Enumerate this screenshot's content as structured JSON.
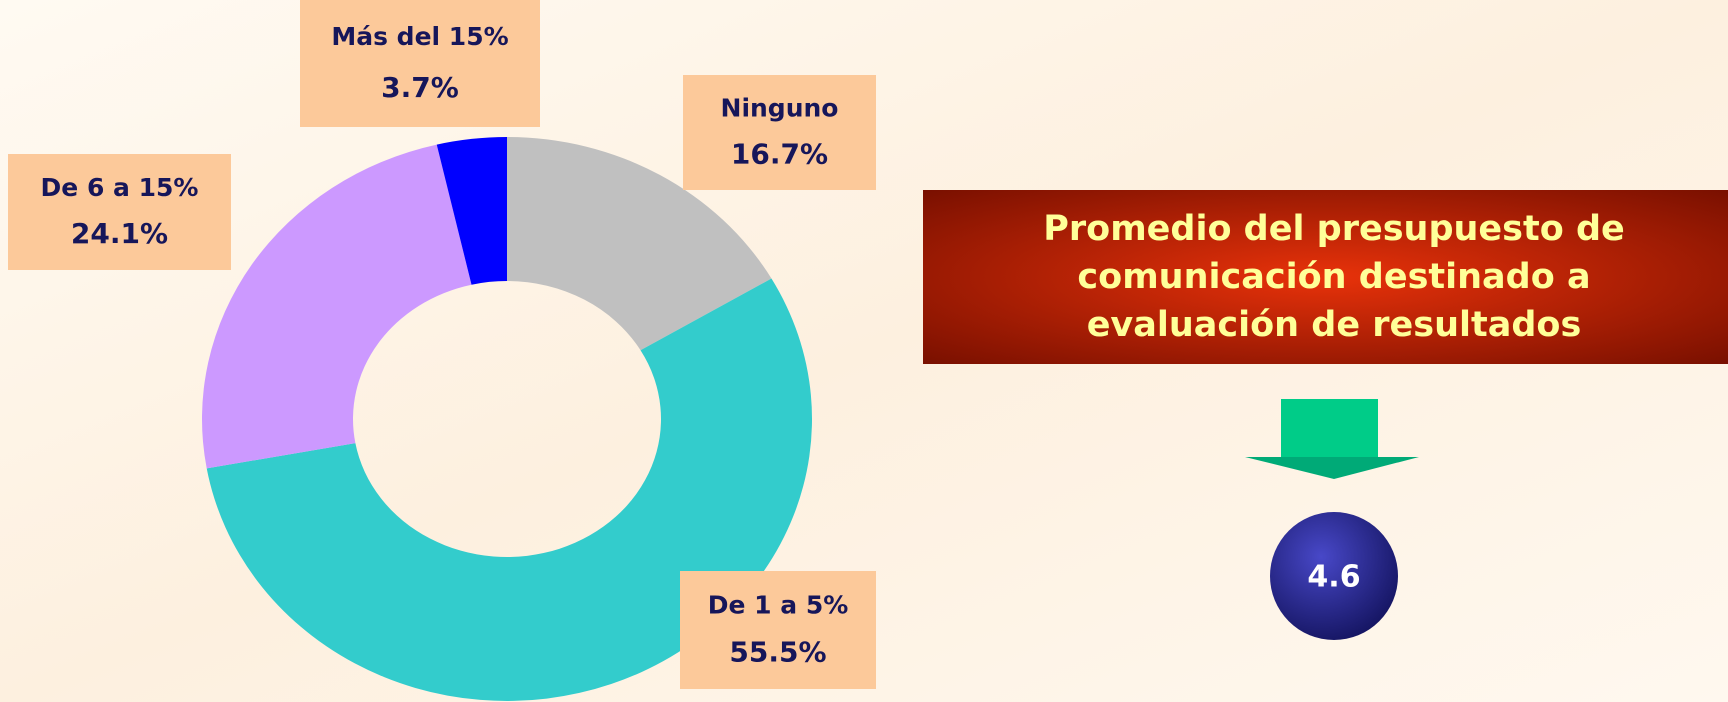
{
  "chart_data": {
    "type": "donut",
    "categories": [
      "Ninguno",
      "De 1 a 5%",
      "De 6 a 15%",
      "Más del 15%"
    ],
    "values": [
      16.7,
      55.5,
      24.1,
      3.7
    ],
    "value_labels": [
      "16.7%",
      "55.5%",
      "24.1%",
      "3.7%"
    ],
    "colors": [
      "#c0c0c0",
      "#33cccc",
      "#cc99ff",
      "#0000ff"
    ]
  },
  "callout": {
    "title": [
      "Promedio del presupuesto de",
      "comunicación destinado a",
      "evaluación de resultados"
    ],
    "value": 4.6
  }
}
